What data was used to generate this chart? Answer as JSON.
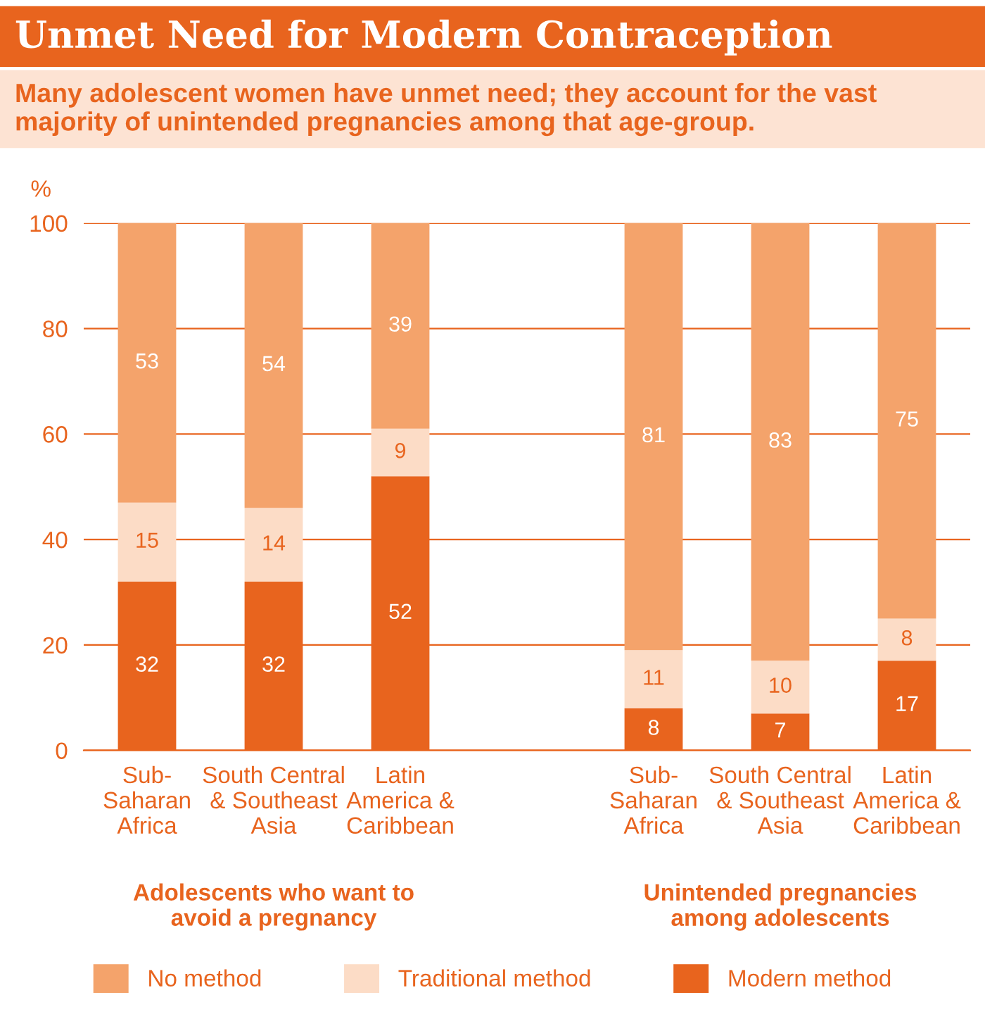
{
  "chart_data": {
    "type": "bar",
    "stacked": true,
    "title": "Unmet Need for Modern Contraception",
    "subtitle": "Many adolescent women have unmet need; they account for the vast majority of unintended pregnancies among that age-group.",
    "ylabel": "%",
    "categories": [
      "Sub-\nSaharan\nAfrica",
      "South Central\n& Southeast\nAsia",
      "Latin\nAmerica &\nCaribbean",
      null,
      "Sub-\nSaharan\nAfrica",
      "South Central\n& Southeast\nAsia",
      "Latin\nAmerica &\nCaribbean"
    ],
    "series": [
      {
        "name": "Modern method",
        "color": "#e8641e",
        "values": [
          32,
          32,
          52,
          null,
          8,
          7,
          17
        ]
      },
      {
        "name": "Traditional method",
        "color": "#fcdcc6",
        "values": [
          15,
          14,
          9,
          null,
          11,
          10,
          8
        ]
      },
      {
        "name": "No method",
        "color": "#f4a36b",
        "values": [
          53,
          54,
          39,
          null,
          81,
          83,
          75
        ]
      }
    ],
    "ylim": [
      0,
      100
    ],
    "yticks": [
      0,
      20,
      40,
      60,
      80,
      100
    ],
    "grid": "y",
    "legend": "bottom",
    "data_labels": true,
    "annotations": [
      "Adolescents who want to\navoid a pregnancy",
      "Unintended pregnancies\namong adolescents"
    ]
  }
}
